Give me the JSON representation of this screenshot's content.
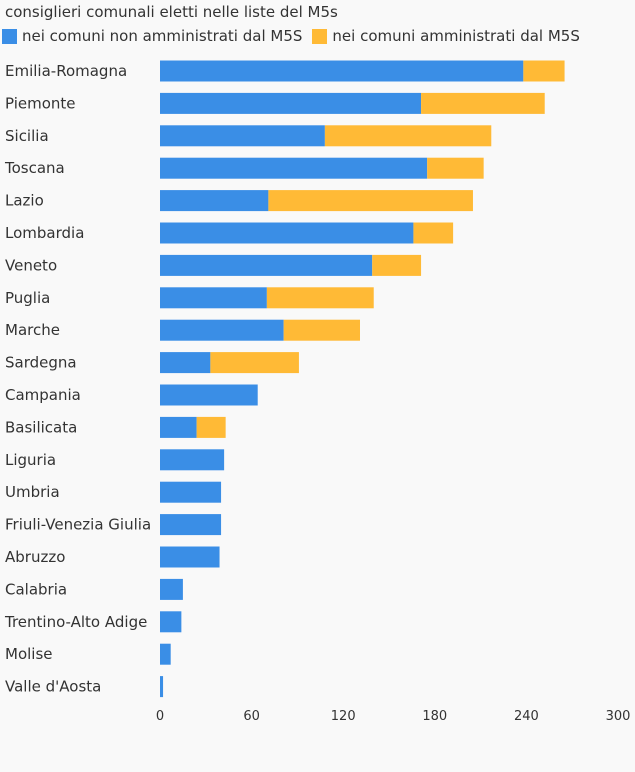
{
  "chart_data": {
    "type": "bar",
    "orientation": "horizontal",
    "stacked": true,
    "title": "consiglieri comunali eletti nelle liste del M5s",
    "series": [
      {
        "name": "nei comuni non amministrati dal M5S",
        "color": "#3a8ee6",
        "values": [
          238,
          171,
          108,
          175,
          71,
          166,
          139,
          70,
          81,
          33,
          64,
          24,
          42,
          40,
          40,
          39,
          15,
          14,
          7,
          2
        ]
      },
      {
        "name": "nei comuni amministrati dal M5S",
        "color": "#ffba36",
        "values": [
          27,
          81,
          109,
          37,
          134,
          26,
          32,
          70,
          50,
          58,
          0,
          19,
          0,
          0,
          0,
          0,
          0,
          0,
          0,
          0
        ]
      }
    ],
    "categories": [
      "Emilia-Romagna",
      "Piemonte",
      "Sicilia",
      "Toscana",
      "Lazio",
      "Lombardia",
      "Veneto",
      "Puglia",
      "Marche",
      "Sardegna",
      "Campania",
      "Basilicata",
      "Liguria",
      "Umbria",
      "Friuli-Venezia Giulia",
      "Abruzzo",
      "Calabria",
      "Trentino-Alto Adige",
      "Molise",
      "Valle d'Aosta"
    ],
    "xlim": [
      0,
      300
    ],
    "xticks": [
      "0",
      "60",
      "120",
      "180",
      "240",
      "300"
    ],
    "xlabel": "",
    "ylabel": "",
    "grid": false,
    "legend_position": "top-left"
  }
}
